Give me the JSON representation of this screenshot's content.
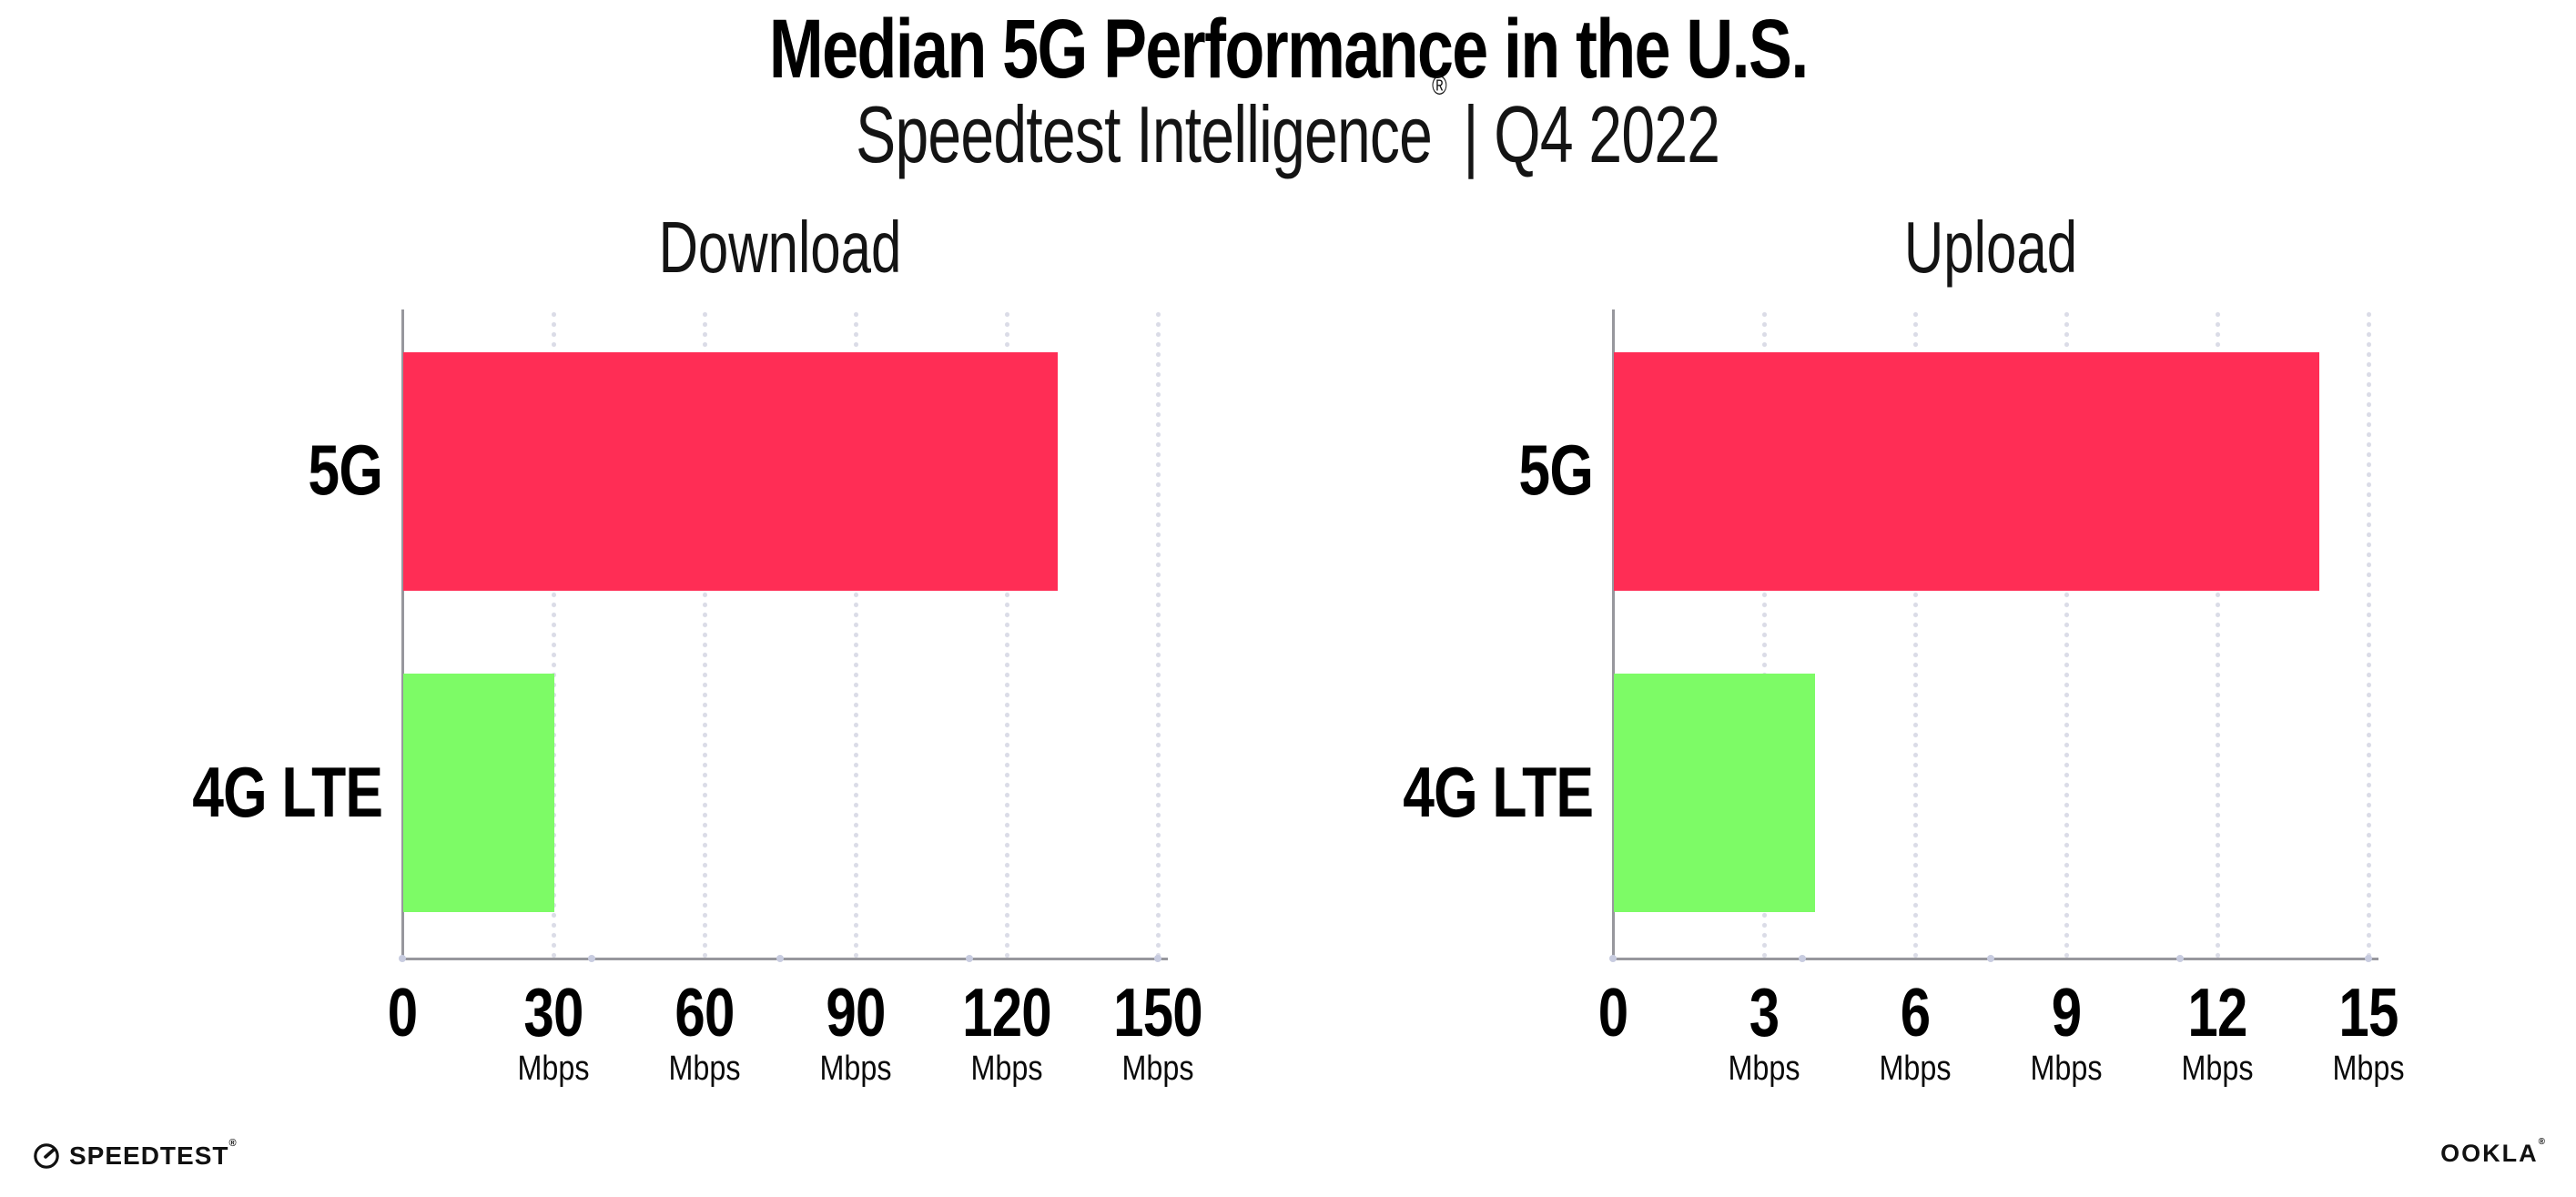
{
  "header": {
    "title": "Median 5G Performance in the U.S.",
    "subtitle_brand": "Speedtest Intelligence",
    "subtitle_reg": "®",
    "subtitle_rest": " | Q4 2022"
  },
  "chart_data": [
    {
      "type": "bar",
      "orientation": "horizontal",
      "title": "Download",
      "categories": [
        "5G",
        "4G LTE"
      ],
      "values": [
        130,
        30
      ],
      "unit": "Mbps",
      "xlim": [
        0,
        150
      ],
      "xticks": [
        0,
        30,
        60,
        90,
        120,
        150
      ],
      "tick_unit_label": "Mbps",
      "grid": "dotted-vertical",
      "legend": "none",
      "bar_colors": [
        "#FF2D55",
        "#7DFB66"
      ]
    },
    {
      "type": "bar",
      "orientation": "horizontal",
      "title": "Upload",
      "categories": [
        "5G",
        "4G LTE"
      ],
      "values": [
        14,
        4
      ],
      "unit": "Mbps",
      "xlim": [
        0,
        15
      ],
      "xticks": [
        0,
        3,
        6,
        9,
        12,
        15
      ],
      "tick_unit_label": "Mbps",
      "grid": "dotted-vertical",
      "legend": "none",
      "bar_colors": [
        "#FF2D55",
        "#7DFB66"
      ]
    }
  ],
  "footer": {
    "speedtest_label": "SPEEDTEST",
    "speedtest_reg": "®",
    "speedtest_icon": "speedtest-gauge-icon",
    "ookla_label": "OOKLA",
    "ookla_reg": "®",
    "ookla_icon": "ookla-wordmark"
  },
  "colors": {
    "background": "#FFFFFF",
    "bar_5g": "#FF2D55",
    "bar_4g_lte": "#7DFB66",
    "axis_line": "#97979D",
    "gridline_dots": "#DBDCE7",
    "axis_tick_dots": "#C8CCE0",
    "title_text": "#000000",
    "secondary_text": "#141414"
  }
}
